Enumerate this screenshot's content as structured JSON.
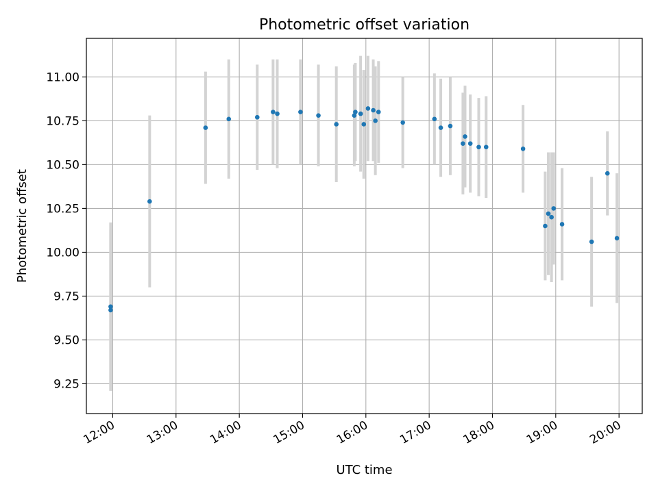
{
  "chart_data": {
    "type": "scatter",
    "title": "Photometric offset variation",
    "xlabel": "UTC time",
    "ylabel": "Photometric offset",
    "x_ticks": [
      "12:00",
      "13:00",
      "14:00",
      "15:00",
      "16:00",
      "17:00",
      "18:00",
      "19:00",
      "20:00"
    ],
    "y_ticks": [
      "9.25",
      "9.50",
      "9.75",
      "10.00",
      "10.25",
      "10.50",
      "10.75",
      "11.00"
    ],
    "xlim": [
      "11:35",
      "20:22"
    ],
    "ylim": [
      9.08,
      11.22
    ],
    "grid": true,
    "marker_color": "#1f77b4",
    "errorbar_color": "#d3d3d3",
    "points": [
      {
        "x": "11:58",
        "y": 9.67,
        "err": 0.46
      },
      {
        "x": "11:58",
        "y": 9.69,
        "err": 0.48
      },
      {
        "x": "12:35",
        "y": 10.29,
        "err": 0.49
      },
      {
        "x": "13:28",
        "y": 10.71,
        "err": 0.32
      },
      {
        "x": "13:50",
        "y": 10.76,
        "err": 0.34
      },
      {
        "x": "14:17",
        "y": 10.77,
        "err": 0.3
      },
      {
        "x": "14:32",
        "y": 10.8,
        "err": 0.3
      },
      {
        "x": "14:36",
        "y": 10.79,
        "err": 0.31
      },
      {
        "x": "14:58",
        "y": 10.8,
        "err": 0.3
      },
      {
        "x": "15:15",
        "y": 10.78,
        "err": 0.29
      },
      {
        "x": "15:32",
        "y": 10.73,
        "err": 0.33
      },
      {
        "x": "15:49",
        "y": 10.78,
        "err": 0.29
      },
      {
        "x": "15:50",
        "y": 10.8,
        "err": 0.28
      },
      {
        "x": "15:55",
        "y": 10.79,
        "err": 0.33
      },
      {
        "x": "15:58",
        "y": 10.73,
        "err": 0.31
      },
      {
        "x": "16:02",
        "y": 10.82,
        "err": 0.3
      },
      {
        "x": "16:07",
        "y": 10.81,
        "err": 0.29
      },
      {
        "x": "16:09",
        "y": 10.75,
        "err": 0.31
      },
      {
        "x": "16:12",
        "y": 10.8,
        "err": 0.29
      },
      {
        "x": "16:35",
        "y": 10.74,
        "err": 0.26
      },
      {
        "x": "17:05",
        "y": 10.76,
        "err": 0.26
      },
      {
        "x": "17:11",
        "y": 10.71,
        "err": 0.28
      },
      {
        "x": "17:20",
        "y": 10.72,
        "err": 0.28
      },
      {
        "x": "17:32",
        "y": 10.62,
        "err": 0.29
      },
      {
        "x": "17:34",
        "y": 10.66,
        "err": 0.29
      },
      {
        "x": "17:39",
        "y": 10.62,
        "err": 0.28
      },
      {
        "x": "17:47",
        "y": 10.6,
        "err": 0.28
      },
      {
        "x": "17:54",
        "y": 10.6,
        "err": 0.29
      },
      {
        "x": "18:29",
        "y": 10.59,
        "err": 0.25
      },
      {
        "x": "18:50",
        "y": 10.15,
        "err": 0.31
      },
      {
        "x": "18:53",
        "y": 10.22,
        "err": 0.35
      },
      {
        "x": "18:56",
        "y": 10.2,
        "err": 0.37
      },
      {
        "x": "18:58",
        "y": 10.25,
        "err": 0.32
      },
      {
        "x": "19:06",
        "y": 10.16,
        "err": 0.32
      },
      {
        "x": "19:34",
        "y": 10.06,
        "err": 0.37
      },
      {
        "x": "19:49",
        "y": 10.45,
        "err": 0.24
      },
      {
        "x": "19:58",
        "y": 10.08,
        "err": 0.37
      }
    ]
  }
}
